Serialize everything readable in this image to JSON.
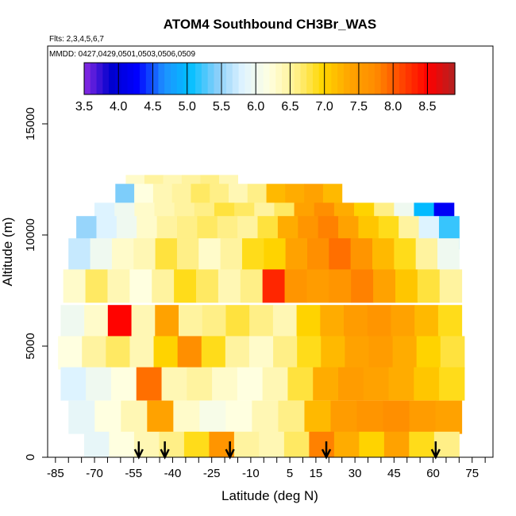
{
  "chart_data": {
    "type": "heatmap",
    "title": "ATOM4 Southbound CH3Br_WAS",
    "subtitle_flights": "Flts: 2,3,4,5,6,7",
    "subtitle_dates": "MMDD: 0427,0429,0501,0503,0506,0509",
    "xlabel": "Latitude (deg N)",
    "ylabel": "Altitude (m)",
    "xlim": [
      -88,
      83
    ],
    "ylim": [
      0,
      18500
    ],
    "x_ticks": [
      "-85",
      "-70",
      "-55",
      "-40",
      "-25",
      "-10",
      "5",
      "15",
      "30",
      "45",
      "60",
      "75"
    ],
    "y_ticks": [
      "0",
      "5000",
      "10000",
      "15000"
    ],
    "colorbar": {
      "range": [
        3.5,
        8.9
      ],
      "ticks": [
        "3.5",
        "4.0",
        "4.5",
        "5.0",
        "5.5",
        "6.0",
        "6.5",
        "7.0",
        "7.5",
        "8.0",
        "8.5"
      ],
      "colors": [
        "#8a2be2",
        "#0000cd",
        "#0000ff",
        "#1e90ff",
        "#00bfff",
        "#87cefa",
        "#e0f4ff",
        "#ffffe0",
        "#fff08c",
        "#ffd700",
        "#ffa500",
        "#ff8c00",
        "#ff4500",
        "#ff0000",
        "#b22222"
      ]
    },
    "flight_marker_latitudes": [
      -53,
      -43,
      -18,
      19,
      61
    ],
    "value_rows": [
      {
        "alt": 12200,
        "lat_range": [
          -58,
          -15
        ],
        "values": [
          6.3,
          6.5,
          6.4,
          6.5,
          6.6,
          6.4
        ]
      },
      {
        "alt": 11800,
        "lat_range": [
          -62,
          25
        ],
        "values": [
          5.4,
          6.2,
          6.4,
          6.5,
          6.7,
          6.6,
          6.4,
          6.6,
          7.2,
          7.3,
          7.4,
          7.2
        ]
      },
      {
        "alt": 10700,
        "lat_range": [
          -70,
          68
        ],
        "values": [
          5.8,
          6.0,
          6.3,
          6.4,
          6.5,
          6.6,
          6.8,
          6.7,
          6.5,
          6.7,
          7.4,
          7.7,
          7.3,
          7.0,
          6.6,
          6.0,
          5.0,
          4.2
        ]
      },
      {
        "alt": 10100,
        "lat_range": [
          -77,
          70
        ],
        "values": [
          5.5,
          5.8,
          6.0,
          6.3,
          6.5,
          6.6,
          6.7,
          6.6,
          6.5,
          6.8,
          7.3,
          7.6,
          7.8,
          7.4,
          7.1,
          6.9,
          6.5,
          5.8,
          5.2
        ]
      },
      {
        "alt": 9100,
        "lat_range": [
          -80,
          70
        ],
        "values": [
          5.7,
          6.0,
          6.3,
          6.4,
          6.8,
          6.6,
          6.3,
          6.5,
          6.9,
          7.0,
          7.4,
          7.7,
          7.9,
          7.6,
          7.2,
          6.9,
          6.5,
          6.0
        ]
      },
      {
        "alt": 7700,
        "lat_range": [
          -82,
          71
        ],
        "values": [
          6.3,
          6.7,
          6.4,
          6.2,
          6.5,
          6.9,
          6.7,
          6.4,
          6.6,
          8.3,
          7.6,
          7.5,
          7.6,
          7.8,
          7.4,
          7.1,
          6.8,
          6.5
        ]
      },
      {
        "alt": 6100,
        "lat_range": [
          -83,
          71
        ],
        "values": [
          6.0,
          6.3,
          8.5,
          6.4,
          7.4,
          6.5,
          6.6,
          6.8,
          6.6,
          6.4,
          7.0,
          7.3,
          7.5,
          7.6,
          7.4,
          7.2,
          6.9
        ]
      },
      {
        "alt": 4700,
        "lat_range": [
          -84,
          72
        ],
        "values": [
          6.2,
          6.5,
          6.7,
          6.4,
          7.0,
          7.7,
          6.9,
          6.5,
          6.3,
          6.6,
          6.9,
          7.2,
          7.4,
          7.5,
          7.3,
          7.0,
          6.8
        ]
      },
      {
        "alt": 3300,
        "lat_range": [
          -83,
          72
        ],
        "values": [
          5.8,
          6.0,
          6.2,
          7.9,
          6.4,
          6.5,
          6.3,
          6.2,
          6.4,
          6.8,
          7.3,
          7.5,
          7.4,
          7.3,
          7.1,
          6.9
        ]
      },
      {
        "alt": 1800,
        "lat_range": [
          -80,
          71
        ],
        "values": [
          5.9,
          6.2,
          6.4,
          7.4,
          6.3,
          6.1,
          6.2,
          6.4,
          6.6,
          7.2,
          7.5,
          7.6,
          7.7,
          7.5,
          7.4
        ]
      },
      {
        "alt": 400,
        "lat_range": [
          -74,
          70
        ],
        "values": [
          5.9,
          6.2,
          6.4,
          6.6,
          6.9,
          7.6,
          6.5,
          6.4,
          6.7,
          7.8,
          7.3,
          7.0,
          7.4,
          6.9,
          6.6
        ]
      }
    ]
  }
}
